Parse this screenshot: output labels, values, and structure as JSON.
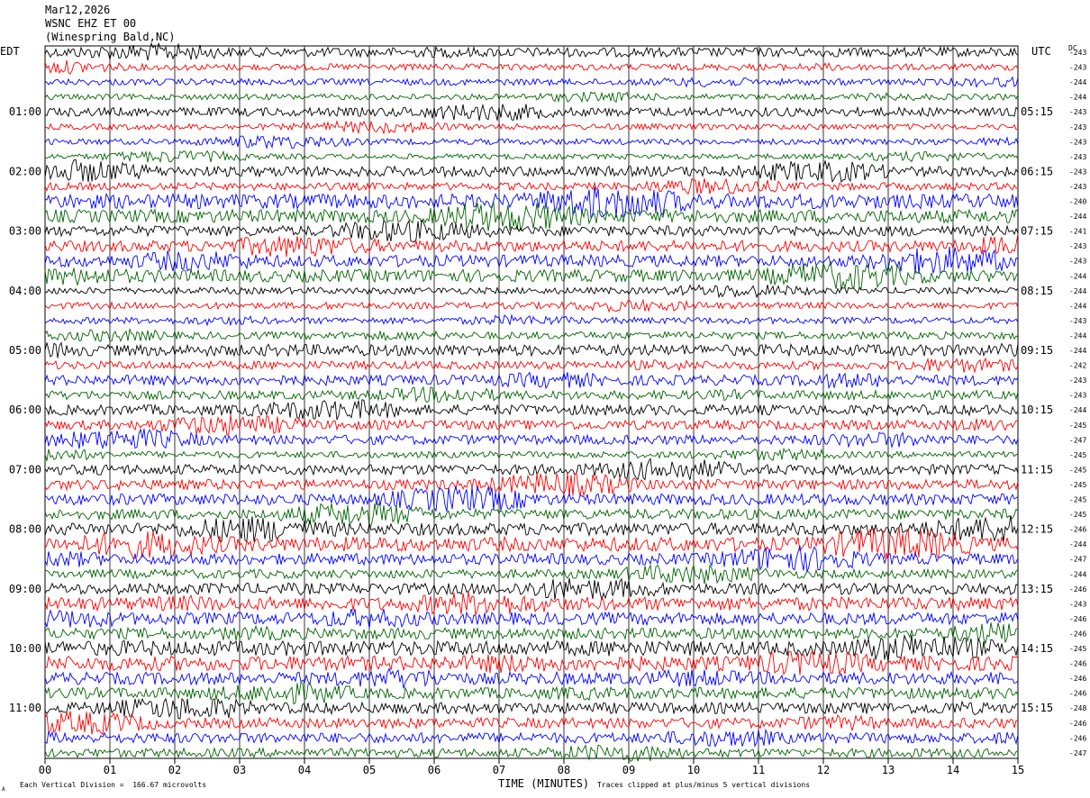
{
  "header": {
    "date": "Mar12,2026",
    "station": "WSNC EHZ ET 00",
    "location": "(Winespring Bald,NC)"
  },
  "chart_data": {
    "type": "line",
    "title": "",
    "left_axis_label": "EDT",
    "right_axis_label": "UTC",
    "dc_label": "DC",
    "xlabel": "TIME (MINUTES)",
    "x_ticks": [
      "00",
      "01",
      "02",
      "03",
      "04",
      "05",
      "06",
      "07",
      "08",
      "09",
      "10",
      "11",
      "12",
      "13",
      "14",
      "15"
    ],
    "xlim": [
      0,
      15
    ],
    "trace_count": 48,
    "trace_colors": [
      "#000000",
      "#ff0000",
      "#0000ff",
      "#006400"
    ],
    "left_hour_labels": [
      "01:00",
      "02:00",
      "03:00",
      "04:00",
      "05:00",
      "06:00",
      "07:00",
      "08:00",
      "09:00",
      "10:00",
      "11:00"
    ],
    "right_hour_labels": [
      "05:15",
      "06:15",
      "07:15",
      "08:15",
      "09:15",
      "10:15",
      "11:15",
      "12:15",
      "13:15",
      "14:15",
      "15:15"
    ],
    "dc_offsets": [
      "-243",
      "-243",
      "-244",
      "-244",
      "-243",
      "-243",
      "-243",
      "-243",
      "-243",
      "-243",
      "-240",
      "-244",
      "-241",
      "-243",
      "-243",
      "-244",
      "-244",
      "-244",
      "-243",
      "-244",
      "-244",
      "-242",
      "-243",
      "-243",
      "-244",
      "-245",
      "-247",
      "-245",
      "-245",
      "-245",
      "-245",
      "-245",
      "-246",
      "-244",
      "-247",
      "-244",
      "-246",
      "-243",
      "-246",
      "-246",
      "-245",
      "-246",
      "-246",
      "-246",
      "-248",
      "-246",
      "-246",
      "-247"
    ],
    "trace_amplitudes": [
      0.32,
      0.22,
      0.22,
      0.2,
      0.3,
      0.2,
      0.2,
      0.18,
      0.35,
      0.25,
      0.5,
      0.45,
      0.35,
      0.38,
      0.4,
      0.42,
      0.22,
      0.22,
      0.22,
      0.25,
      0.38,
      0.28,
      0.35,
      0.3,
      0.35,
      0.32,
      0.32,
      0.22,
      0.35,
      0.35,
      0.38,
      0.35,
      0.42,
      0.48,
      0.38,
      0.3,
      0.38,
      0.45,
      0.42,
      0.38,
      0.5,
      0.5,
      0.42,
      0.38,
      0.38,
      0.35,
      0.35,
      0.3
    ]
  },
  "footer": {
    "scale_note": "Each Vertical Division =  166.67 microvolts",
    "clip_note": "Traces clipped at plus/minus 5 vertical divisions",
    "corner_mark": "A"
  }
}
